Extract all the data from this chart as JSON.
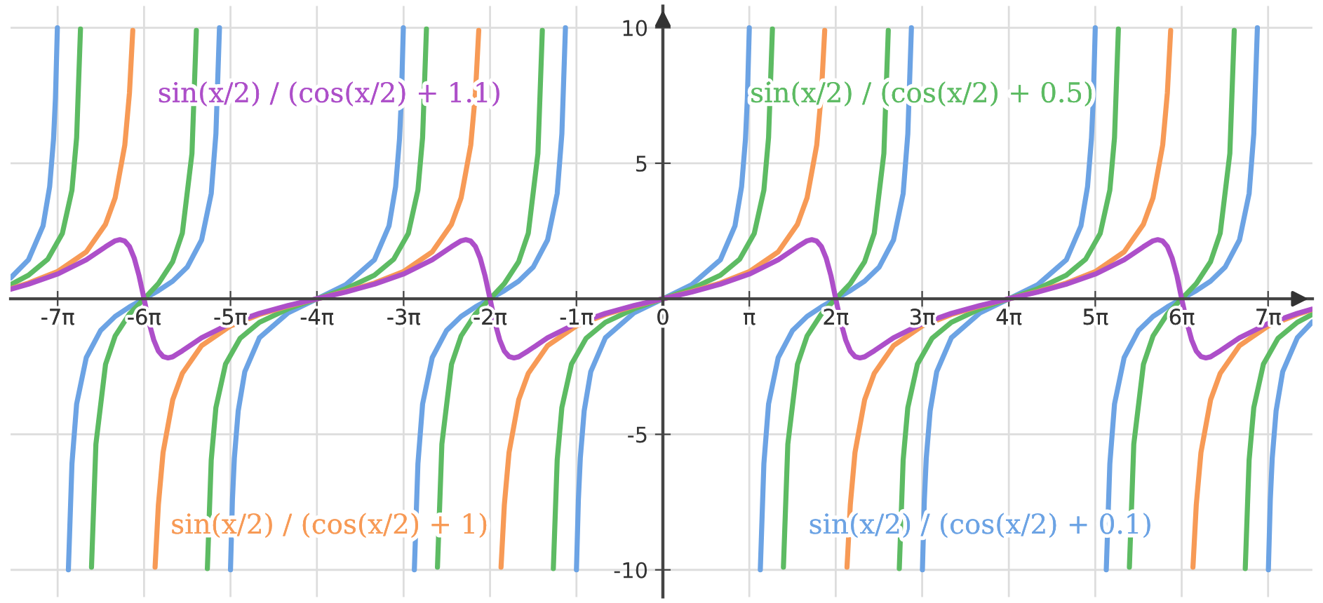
{
  "chart_data": {
    "type": "line",
    "xlim": [
      -23.7,
      23.6
    ],
    "ylim": [
      -11,
      10.8
    ],
    "xticks": [
      {
        "value": -21.99,
        "label": "-7π"
      },
      {
        "value": -18.85,
        "label": "-6π"
      },
      {
        "value": -15.71,
        "label": "-5π"
      },
      {
        "value": -12.57,
        "label": "-4π"
      },
      {
        "value": -9.42,
        "label": "-3π"
      },
      {
        "value": -6.28,
        "label": "-2π"
      },
      {
        "value": -3.14,
        "label": "-1π"
      },
      0,
      {
        "value": 3.14,
        "label": "π"
      },
      {
        "value": 6.28,
        "label": "2π"
      },
      {
        "value": 9.42,
        "label": "3π"
      },
      {
        "value": 12.57,
        "label": "4π"
      },
      {
        "value": 15.71,
        "label": "5π"
      },
      {
        "value": 18.85,
        "label": "6π"
      },
      {
        "value": 21.99,
        "label": "7π"
      }
    ],
    "yticks": [
      -10,
      -5,
      5,
      10
    ],
    "grid": true,
    "marker": "none",
    "line_style": "solid",
    "series": [
      {
        "name": "sin(x/2) / (cos(x/2) + 0.1)",
        "color": "#6ca3e4",
        "x": [
          -23.7,
          -23.05,
          -22.52,
          -22.28,
          -22.14,
          -22.07,
          -22.0,
          -21.8,
          -21.6,
          -21.47,
          -21.3,
          -20.95,
          -20.43,
          -19.9,
          -19.38,
          -18.85,
          -18.33,
          -17.81,
          -17.28,
          -16.76,
          -16.41,
          -16.24,
          -16.11,
          -15.91,
          -15.71,
          -15.64,
          -15.57,
          -15.43,
          -15.19,
          -14.66,
          -13.62,
          -12.57,
          -11.52,
          -10.48,
          -9.95,
          -9.71,
          -9.57,
          -9.5,
          -9.43,
          -9.23,
          -9.03,
          -8.9,
          -8.73,
          -8.38,
          -7.86,
          -7.33,
          -6.81,
          -6.28,
          -5.76,
          -5.24,
          -4.71,
          -4.19,
          -3.84,
          -3.67,
          -3.54,
          -3.34,
          -3.14,
          -3.07,
          -3.0,
          -2.86,
          -2.62,
          -2.09,
          -1.05,
          0,
          1.05,
          2.09,
          2.62,
          2.86,
          3.0,
          3.07,
          3.14,
          3.34,
          3.54,
          3.67,
          3.84,
          4.19,
          4.71,
          5.24,
          5.76,
          6.28,
          6.81,
          7.33,
          7.86,
          8.38,
          8.73,
          8.9,
          9.03,
          9.23,
          9.43,
          9.5,
          9.57,
          9.71,
          9.95,
          10.48,
          11.52,
          12.57,
          13.62,
          14.66,
          15.19,
          15.43,
          15.57,
          15.64,
          15.71,
          15.91,
          16.11,
          16.24,
          16.41,
          16.76,
          17.28,
          17.81,
          18.33,
          18.85,
          19.38,
          19.9,
          20.43,
          20.95,
          21.3,
          21.47,
          21.6,
          21.8,
          22.0,
          22.07,
          22.14,
          22.28,
          22.52,
          23.05,
          23.6
        ],
        "values": [
          0.77,
          1.44,
          2.69,
          4.14,
          5.88,
          7.41,
          10,
          null,
          -10,
          -6.08,
          -3.88,
          -2.17,
          -1.17,
          -0.65,
          -0.3,
          0,
          0.3,
          0.65,
          1.17,
          2.17,
          3.88,
          6.08,
          10,
          null,
          -10,
          -7.41,
          -5.88,
          -4.14,
          -2.69,
          -1.44,
          -0.52,
          0,
          0.52,
          1.44,
          2.69,
          4.14,
          5.88,
          7.41,
          10,
          null,
          -10,
          -6.08,
          -3.88,
          -2.17,
          -1.17,
          -0.65,
          -0.3,
          0,
          0.3,
          0.65,
          1.17,
          2.17,
          3.88,
          6.08,
          10,
          null,
          -10,
          -7.41,
          -5.88,
          -4.14,
          -2.69,
          -1.44,
          -0.52,
          0,
          0.52,
          1.44,
          2.69,
          4.14,
          5.88,
          7.41,
          10,
          null,
          -10,
          -6.08,
          -3.88,
          -2.17,
          -1.17,
          -0.65,
          -0.3,
          0,
          0.3,
          0.65,
          1.17,
          2.17,
          3.88,
          6.08,
          10,
          null,
          -10,
          -7.41,
          -5.88,
          -4.14,
          -2.69,
          -1.44,
          -0.52,
          0,
          0.52,
          1.44,
          2.69,
          4.14,
          5.88,
          7.41,
          10,
          null,
          -10,
          -6.08,
          -3.88,
          -2.17,
          -1.17,
          -0.65,
          -0.3,
          0,
          0.3,
          0.65,
          1.17,
          2.17,
          3.88,
          6.08,
          10,
          null,
          -10,
          -7.41,
          -5.88,
          -4.14,
          -2.69,
          -1.44,
          -0.85
        ]
      },
      {
        "name": "sin(x/2) / (cos(x/2) + 0.5)",
        "color": "#5dbb63",
        "x": [
          -23.7,
          -23.05,
          -22.35,
          -21.82,
          -21.47,
          -21.3,
          -21.16,
          -20.95,
          -20.76,
          -20.6,
          -20.25,
          -19.9,
          -19.38,
          -18.85,
          -18.33,
          -17.81,
          -17.46,
          -17.11,
          -16.95,
          -16.76,
          -16.55,
          -16.41,
          -16.24,
          -15.89,
          -15.36,
          -14.66,
          -13.62,
          -12.57,
          -11.52,
          -10.48,
          -9.78,
          -9.25,
          -8.9,
          -8.73,
          -8.59,
          -8.38,
          -8.19,
          -8.03,
          -7.68,
          -7.33,
          -6.81,
          -6.28,
          -5.76,
          -5.24,
          -4.89,
          -4.54,
          -4.38,
          -4.19,
          -3.98,
          -3.84,
          -3.67,
          -3.32,
          -2.79,
          -2.09,
          -1.05,
          0,
          1.05,
          2.09,
          2.79,
          3.32,
          3.67,
          3.84,
          3.98,
          4.19,
          4.38,
          4.54,
          4.89,
          5.24,
          5.76,
          6.28,
          6.81,
          7.33,
          7.68,
          8.03,
          8.19,
          8.38,
          8.59,
          8.73,
          8.9,
          9.25,
          9.78,
          10.48,
          11.52,
          12.57,
          13.62,
          14.66,
          15.36,
          15.89,
          16.24,
          16.41,
          16.55,
          16.76,
          16.95,
          17.11,
          17.46,
          17.81,
          18.33,
          18.85,
          19.38,
          19.9,
          20.25,
          20.6,
          20.76,
          20.95,
          21.16,
          21.3,
          21.47,
          21.82,
          22.35,
          23.05,
          23.6
        ],
        "values": [
          0.52,
          0.87,
          1.46,
          2.41,
          4.01,
          5.95,
          9.95,
          null,
          -9.9,
          -5.36,
          -2.42,
          -1.37,
          -0.56,
          0,
          0.56,
          1.37,
          2.42,
          5.36,
          9.9,
          null,
          -9.95,
          -5.95,
          -4.01,
          -2.41,
          -1.46,
          -0.87,
          -0.37,
          0,
          0.37,
          0.87,
          1.46,
          2.41,
          4.01,
          5.95,
          9.95,
          null,
          -9.9,
          -5.36,
          -2.42,
          -1.37,
          -0.56,
          0,
          0.56,
          1.37,
          2.42,
          5.36,
          9.9,
          null,
          -9.95,
          -5.95,
          -4.01,
          -2.41,
          -1.46,
          -0.87,
          -0.37,
          0,
          0.37,
          0.87,
          1.46,
          2.41,
          4.01,
          5.95,
          9.95,
          null,
          -9.9,
          -5.36,
          -2.42,
          -1.37,
          -0.56,
          0,
          0.56,
          1.37,
          2.42,
          5.36,
          9.9,
          null,
          -9.95,
          -5.95,
          -4.01,
          -2.41,
          -1.46,
          -0.87,
          -0.37,
          0,
          0.37,
          0.87,
          1.46,
          2.41,
          4.01,
          5.95,
          9.95,
          null,
          -9.9,
          -5.36,
          -2.42,
          -1.37,
          -0.56,
          0,
          0.56,
          1.37,
          2.42,
          5.36,
          9.9,
          null,
          -9.95,
          -5.95,
          -4.01,
          -2.41,
          -1.46,
          -0.87,
          -0.57
        ]
      },
      {
        "name": "sin(x/2) / (cos(x/2) + 1)",
        "color": "#f79a56",
        "x": [
          -23.7,
          -23.05,
          -22.0,
          -20.95,
          -20.25,
          -19.9,
          -19.55,
          -19.38,
          -19.26,
          -18.85,
          -18.45,
          -18.33,
          -18.16,
          -17.81,
          -17.46,
          -16.76,
          -15.71,
          -14.66,
          -13.62,
          -12.57,
          -11.52,
          -10.48,
          -9.43,
          -8.38,
          -7.68,
          -7.33,
          -6.98,
          -6.81,
          -6.69,
          -6.28,
          -5.88,
          -5.76,
          -5.59,
          -5.24,
          -4.89,
          -4.19,
          -3.14,
          -2.09,
          -1.05,
          0,
          1.05,
          2.09,
          3.14,
          4.19,
          4.89,
          5.24,
          5.59,
          5.76,
          5.88,
          6.28,
          6.69,
          6.81,
          6.98,
          7.33,
          7.68,
          8.38,
          9.43,
          10.48,
          11.52,
          12.57,
          13.62,
          14.66,
          15.71,
          16.76,
          17.46,
          17.81,
          18.16,
          18.33,
          18.45,
          18.85,
          19.26,
          19.38,
          19.55,
          19.9,
          20.25,
          20.95,
          22.0,
          23.05,
          23.6
        ],
        "values": [
          0.37,
          0.58,
          1,
          1.73,
          2.75,
          3.73,
          5.67,
          7.6,
          9.9,
          null,
          -9.9,
          -7.6,
          -5.67,
          -3.73,
          -2.75,
          -1.73,
          -1,
          -0.58,
          -0.27,
          0,
          0.27,
          0.58,
          1,
          1.73,
          2.75,
          3.73,
          5.67,
          7.6,
          9.9,
          null,
          -9.9,
          -7.6,
          -5.67,
          -3.73,
          -2.75,
          -1.73,
          -1,
          -0.58,
          -0.27,
          0,
          0.27,
          0.58,
          1,
          1.73,
          2.75,
          3.73,
          5.67,
          7.6,
          9.9,
          null,
          -9.9,
          -7.6,
          -5.67,
          -3.73,
          -2.75,
          -1.73,
          -1,
          -0.58,
          -0.27,
          0,
          0.27,
          0.58,
          1,
          1.73,
          2.75,
          3.73,
          5.67,
          7.6,
          9.9,
          null,
          -9.9,
          -7.6,
          -5.67,
          -3.73,
          -2.75,
          -1.73,
          -1,
          -0.58,
          -0.4
        ]
      },
      {
        "name": "sin(x/2) / (cos(x/2) + 1.1)",
        "color": "#ad4fc9",
        "x": [
          -23.7,
          -23.05,
          -22.0,
          -20.95,
          -20.25,
          -19.9,
          -19.73,
          -19.55,
          -19.38,
          -19.21,
          -19.03,
          -18.85,
          -18.68,
          -18.5,
          -18.33,
          -18.16,
          -17.98,
          -17.81,
          -17.46,
          -16.76,
          -15.71,
          -14.66,
          -13.62,
          -12.57,
          -11.52,
          -10.48,
          -9.43,
          -8.38,
          -7.68,
          -7.33,
          -7.16,
          -6.98,
          -6.81,
          -6.64,
          -6.46,
          -6.28,
          -6.11,
          -5.93,
          -5.76,
          -5.59,
          -5.41,
          -5.24,
          -4.89,
          -4.19,
          -3.14,
          -2.09,
          -1.05,
          0,
          1.05,
          2.09,
          3.14,
          4.19,
          4.89,
          5.24,
          5.41,
          5.59,
          5.76,
          5.93,
          6.11,
          6.28,
          6.46,
          6.64,
          6.81,
          6.98,
          7.16,
          7.33,
          7.68,
          8.38,
          9.43,
          10.48,
          11.52,
          12.57,
          13.62,
          14.66,
          15.71,
          16.76,
          17.46,
          17.81,
          17.98,
          18.16,
          18.33,
          18.5,
          18.68,
          18.85,
          19.03,
          19.21,
          19.38,
          19.55,
          19.73,
          19.9,
          20.25,
          20.95,
          22.0,
          23.05,
          23.6
        ],
        "values": [
          0.35,
          0.54,
          0.91,
          1.44,
          1.92,
          2.14,
          2.18,
          2.13,
          1.93,
          1.51,
          0.84,
          0,
          -0.84,
          -1.51,
          -1.93,
          -2.13,
          -2.18,
          -2.14,
          -1.92,
          -1.44,
          -0.91,
          -0.54,
          -0.25,
          0,
          0.25,
          0.54,
          0.91,
          1.44,
          1.92,
          2.14,
          2.18,
          2.13,
          1.93,
          1.51,
          0.84,
          0,
          -0.84,
          -1.51,
          -1.93,
          -2.13,
          -2.18,
          -2.14,
          -1.92,
          -1.44,
          -0.91,
          -0.54,
          -0.25,
          0,
          0.25,
          0.54,
          0.91,
          1.44,
          1.92,
          2.14,
          2.18,
          2.13,
          1.93,
          1.51,
          0.84,
          0,
          -0.84,
          -1.51,
          -1.93,
          -2.13,
          -2.18,
          -2.14,
          -1.92,
          -1.44,
          -0.91,
          -0.54,
          -0.25,
          0,
          0.25,
          0.54,
          0.91,
          1.44,
          1.92,
          2.14,
          2.18,
          2.13,
          1.93,
          1.51,
          0.84,
          0,
          -0.84,
          -1.51,
          -1.93,
          -2.13,
          -2.18,
          -2.14,
          -1.92,
          -1.44,
          -0.91,
          -0.54,
          -0.38
        ]
      }
    ]
  }
}
